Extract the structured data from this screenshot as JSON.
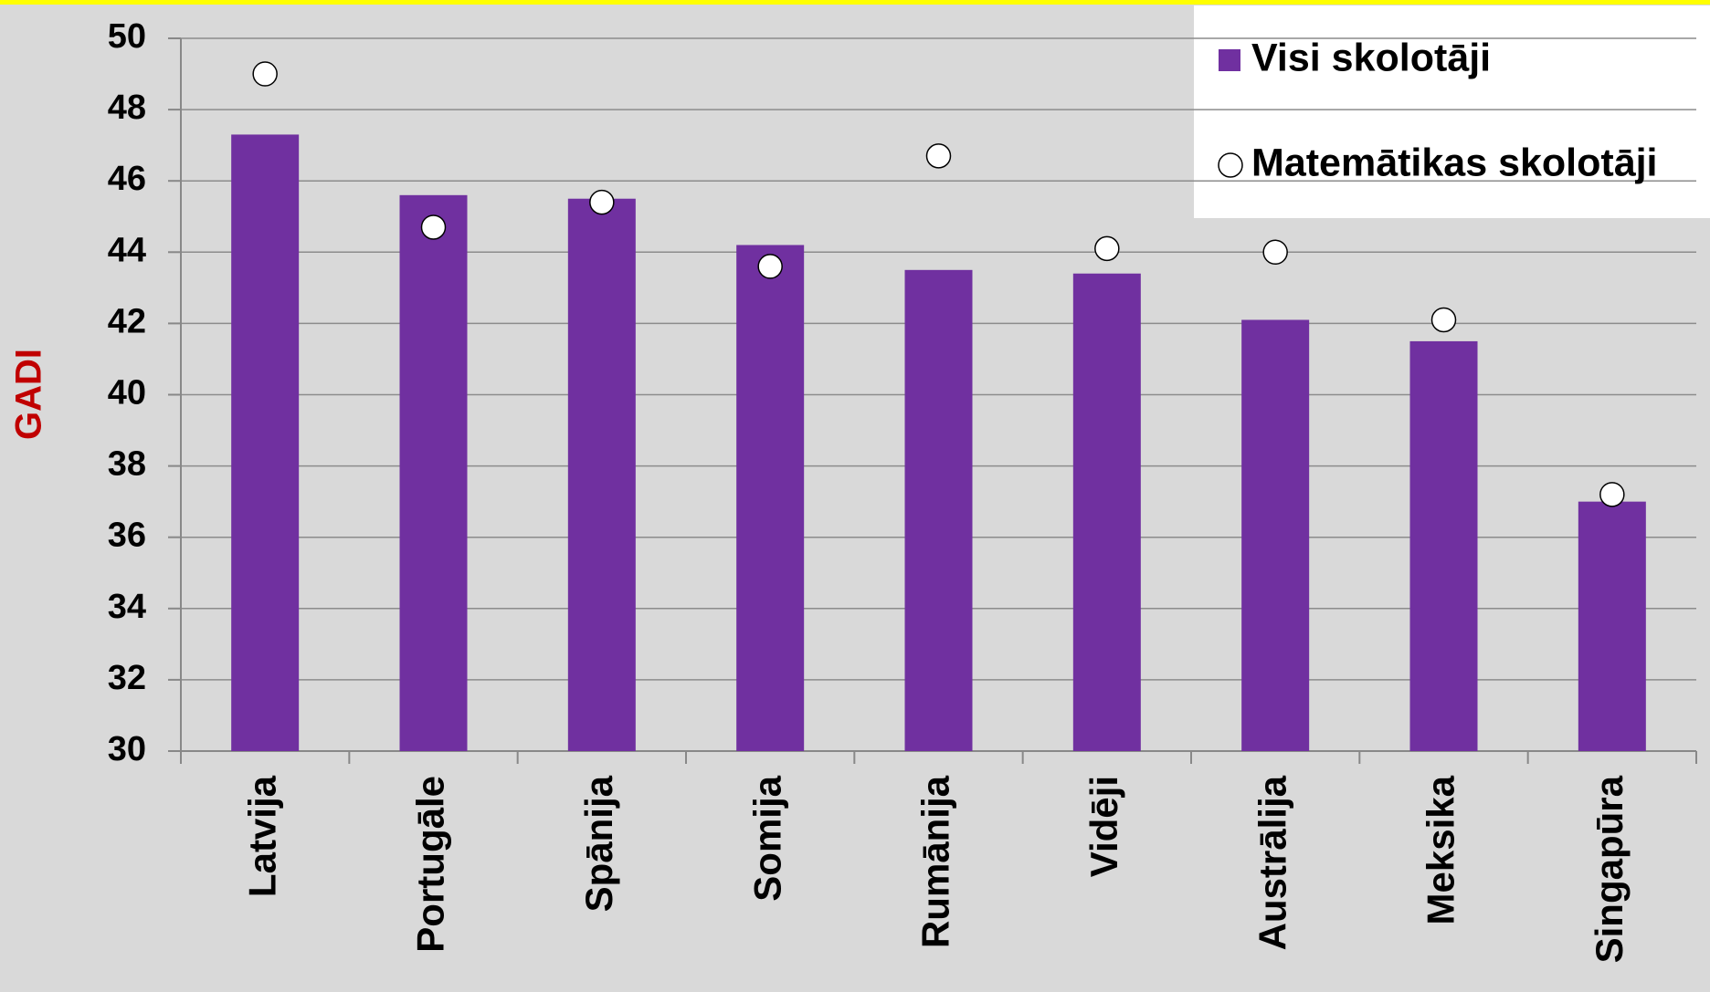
{
  "chart_data": {
    "type": "bar",
    "y_label": "GADI",
    "categories": [
      "Latvija",
      "Portugāle",
      "Spānija",
      "Somija",
      "Rumānija",
      "Vidēji",
      "Austrālija",
      "Meksika",
      "Singapūra"
    ],
    "series": [
      {
        "name": "Visi skolotāji",
        "type": "bar",
        "color": "#7030a0",
        "values": [
          47.3,
          45.6,
          45.5,
          44.2,
          43.5,
          43.4,
          42.1,
          41.5,
          37.0
        ]
      },
      {
        "name": "Matemātikas skolotāji",
        "type": "scatter",
        "color": "#ffffff",
        "values": [
          49.0,
          44.7,
          45.4,
          43.6,
          46.7,
          44.1,
          44.0,
          42.1,
          37.2
        ]
      }
    ],
    "ylim": [
      30,
      50
    ],
    "yticks": [
      30,
      32,
      34,
      36,
      38,
      40,
      42,
      44,
      46,
      48,
      50
    ],
    "grid": true,
    "legend": "top-right"
  }
}
